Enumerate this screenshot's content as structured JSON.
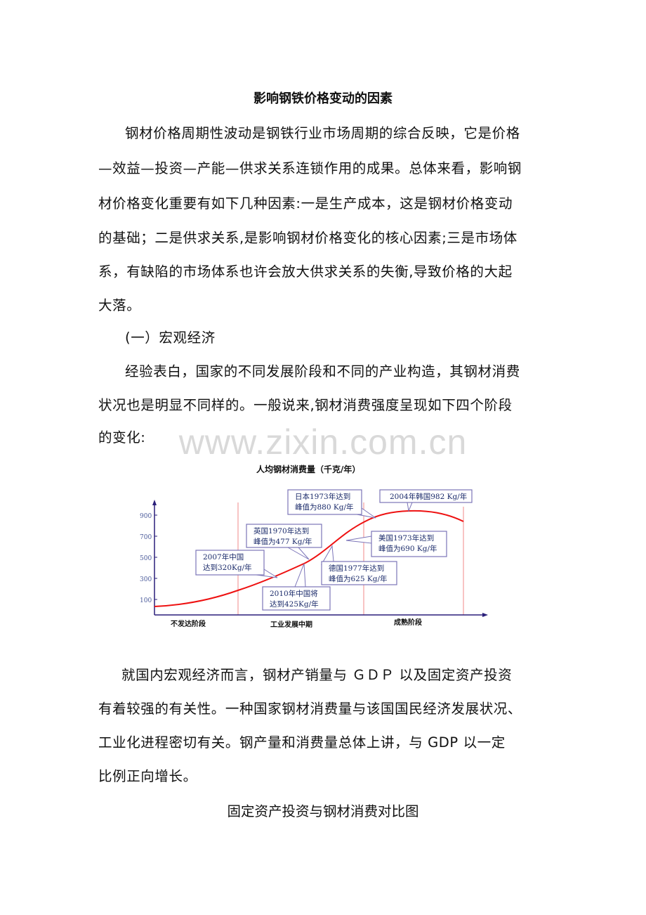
{
  "title": "影响钢铁价格变动的因素",
  "para1": [
    "钢材价格周期性波动是钢铁行业市场周期的综合反映，它是价格",
    "—效益—投资—产能—供求关系连锁作用的成果。总体来看，影响钢",
    "材价格变化重要有如下几种因素:一是生产成本，这是钢材价格变动",
    "的基础；二是供求关系,是影响钢材价格变化的核心因素;三是市场体",
    "系，有缺陷的市场体系也许会放大供求关系的失衡,导致价格的大起",
    "大落。"
  ],
  "heading1": "(一）宏观经济",
  "para2": [
    "经验表白，国家的不同发展阶段和不同的产业构造，其钢材消费",
    "状况也是明显不同样的。一般说来,钢材消费强度呈现如下四个阶段",
    "的变化:"
  ],
  "watermark": "www.zixin.com.cn",
  "figure": {
    "title": "人均钢材消费量（千克/年）",
    "y_ticks": [
      "900",
      "700",
      "500",
      "300",
      "100"
    ],
    "stages": [
      "不发达阶段",
      "工业发展中期",
      "成熟阶段"
    ],
    "annotations": [
      [
        "日本1973年达到",
        "峰值为880 Kg/年"
      ],
      [
        "2004年韩国982 Kg/年"
      ],
      [
        "英国1970年达到",
        "峰值为477 Kg/年"
      ],
      [
        "美国1973年达到",
        "峰值为690 Kg/年"
      ],
      [
        "2007年中国",
        "达到320Kg/年"
      ],
      [
        "德国1977年达到",
        "峰值为625 Kg/年"
      ],
      [
        "2010年中国将",
        "达到425Kg/年"
      ]
    ],
    "colors": {
      "curve": "#ee1111",
      "axis": "#2a1f7a",
      "box": "#7b74b8",
      "stage_line": "#f08a8a",
      "tick": "#4a5a9a"
    }
  },
  "para3": [
    "就国内宏观经济而言，钢材产销量与 ＧＤＰ 以及固定资产投资",
    "有着较强的有关性。一种国家钢材消费量与该国国民经济发展状况、",
    "工业化进程密切有关。钢产量和消费量总体上讲，与 GDP 以一定",
    "比例正向增长。"
  ],
  "caption": "固定资产投资与钢材消费对比图"
}
